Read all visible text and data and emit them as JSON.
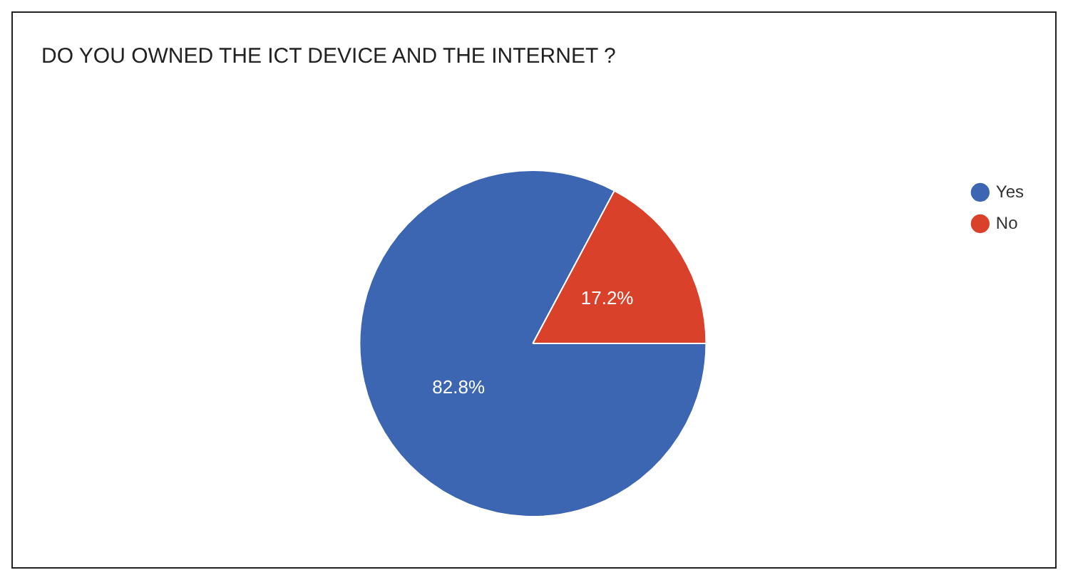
{
  "chart_data": {
    "type": "pie",
    "title": "DO YOU OWNED  THE ICT DEVICE AND THE INTERNET ?",
    "categories": [
      "Yes",
      "No"
    ],
    "values": [
      82.8,
      17.2
    ],
    "colors": [
      "#3c65b2",
      "#d9412b"
    ],
    "value_labels": [
      "82.8%",
      "17.2%"
    ],
    "legend": "right"
  }
}
